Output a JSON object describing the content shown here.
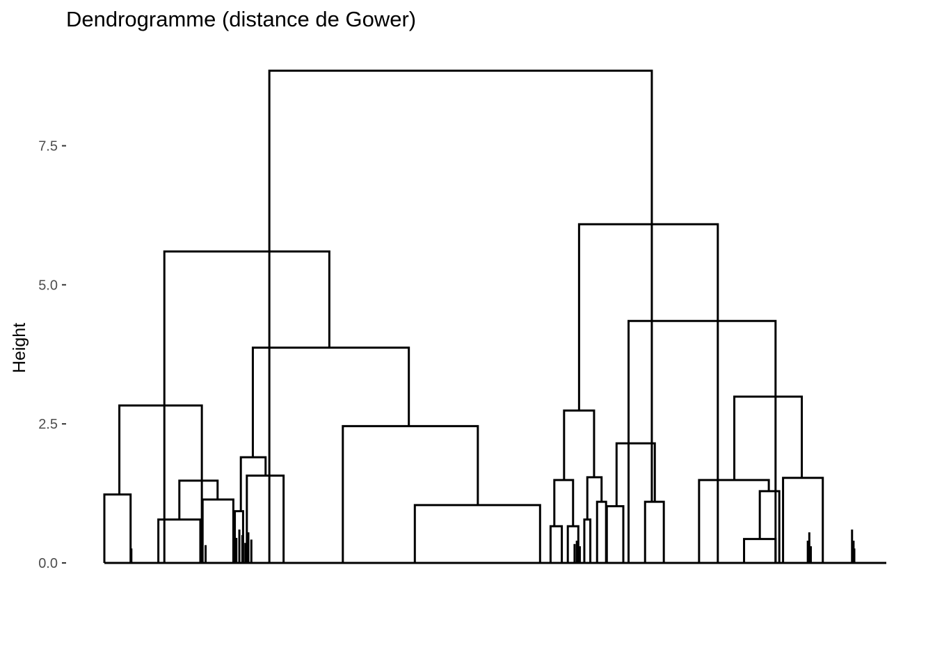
{
  "chart_data": {
    "type": "dendrogram",
    "title": "Dendrogramme (distance de Gower)",
    "xlabel": "",
    "ylabel": "Height",
    "ylim": [
      0,
      8.9
    ],
    "y_ticks": [
      {
        "value": 0.0,
        "label": "0.0"
      },
      {
        "value": 2.5,
        "label": "2.5"
      },
      {
        "value": 5.0,
        "label": "5.0"
      },
      {
        "value": 7.5,
        "label": "7.5"
      }
    ],
    "grid": false,
    "legend": "none",
    "line_color": "#000000",
    "n_leaves": 280,
    "merges": [
      {
        "id": "root",
        "height": 8.85,
        "left": 0.22,
        "right": 0.73
      },
      {
        "id": "left-cluster",
        "height": 5.6,
        "left": 0.08,
        "right": 0.3
      },
      {
        "id": "left-a",
        "height": 2.83,
        "left": 0.02,
        "right": 0.13
      },
      {
        "id": "left-a1",
        "height": 1.23,
        "left": 0.0,
        "right": 0.035
      },
      {
        "id": "left-a2",
        "height": 1.48,
        "left": 0.1,
        "right": 0.151
      },
      {
        "id": "left-a2a",
        "height": 0.78,
        "left": 0.072,
        "right": 0.128
      },
      {
        "id": "left-a2b",
        "height": 1.14,
        "left": 0.131,
        "right": 0.172
      },
      {
        "id": "left-b",
        "height": 3.87,
        "left": 0.198,
        "right": 0.406
      },
      {
        "id": "left-b1",
        "height": 1.9,
        "left": 0.182,
        "right": 0.215
      },
      {
        "id": "left-b1a",
        "height": 0.93,
        "left": 0.174,
        "right": 0.185
      },
      {
        "id": "left-b1b",
        "height": 1.57,
        "left": 0.19,
        "right": 0.239
      },
      {
        "id": "left-b2",
        "height": 2.46,
        "left": 0.318,
        "right": 0.498
      },
      {
        "id": "left-b2a",
        "height": 0.0,
        "left": 0.318,
        "right": 0.318
      },
      {
        "id": "left-b2b",
        "height": 1.04,
        "left": 0.414,
        "right": 0.581
      },
      {
        "id": "right-cluster",
        "height": 6.09,
        "left": 0.633,
        "right": 0.818
      },
      {
        "id": "right-a",
        "height": 2.74,
        "left": 0.613,
        "right": 0.653
      },
      {
        "id": "right-a1",
        "height": 1.49,
        "left": 0.6,
        "right": 0.625
      },
      {
        "id": "right-a1a",
        "height": 0.66,
        "left": 0.595,
        "right": 0.61
      },
      {
        "id": "right-a1b",
        "height": 0.66,
        "left": 0.618,
        "right": 0.632
      },
      {
        "id": "right-a2",
        "height": 1.54,
        "left": 0.644,
        "right": 0.663
      },
      {
        "id": "right-a2a",
        "height": 0.78,
        "left": 0.64,
        "right": 0.648
      },
      {
        "id": "right-a2b",
        "height": 1.1,
        "left": 0.657,
        "right": 0.669
      },
      {
        "id": "right-b",
        "height": 4.35,
        "left": 0.699,
        "right": 0.895
      },
      {
        "id": "right-b1",
        "height": 2.15,
        "left": 0.683,
        "right": 0.734
      },
      {
        "id": "right-b1a",
        "height": 1.02,
        "left": 0.67,
        "right": 0.692
      },
      {
        "id": "right-b1b",
        "height": 1.1,
        "left": 0.721,
        "right": 0.746
      },
      {
        "id": "right-b2",
        "height": 2.99,
        "left": 0.84,
        "right": 0.93
      },
      {
        "id": "right-b2a",
        "height": 1.49,
        "left": 0.793,
        "right": 0.886
      },
      {
        "id": "right-b2a1",
        "height": 1.29,
        "left": 0.874,
        "right": 0.9
      },
      {
        "id": "right-b2a2",
        "height": 0.43,
        "left": 0.853,
        "right": 0.895
      },
      {
        "id": "right-b2b",
        "height": 1.53,
        "left": 0.905,
        "right": 0.958
      }
    ]
  }
}
